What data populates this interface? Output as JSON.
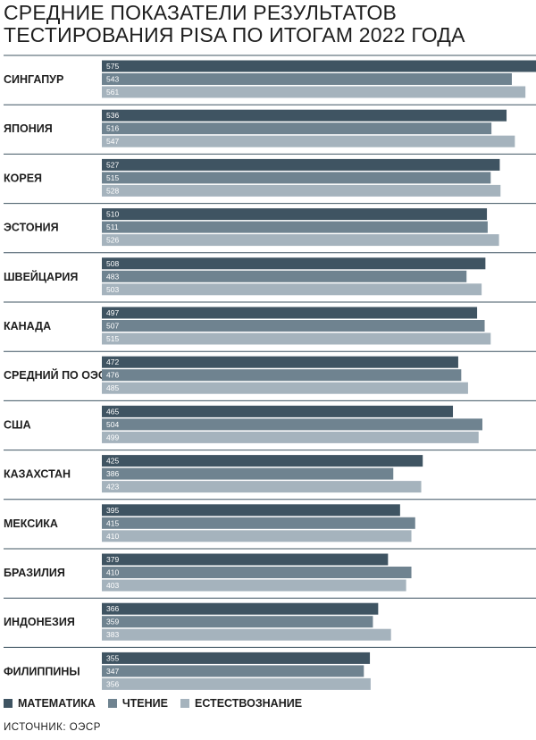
{
  "title_lines": [
    "СРЕДНИЕ ПОКАЗАТЕЛИ РЕЗУЛЬТАТОВ",
    "ТЕСТИРОВАНИЯ PISA ПО ИТОГАМ 2022 ГОДА"
  ],
  "source": "ИСТОЧНИК: ОЭСР",
  "colors": {
    "math": "#3f5462",
    "reading": "#6f8390",
    "science": "#a5b3bd",
    "divider": "#3f5462",
    "label": "#ffffff"
  },
  "chart_data": {
    "type": "bar",
    "orientation": "horizontal",
    "title": "СРЕДНИЕ ПОКАЗАТЕЛИ РЕЗУЛЬТАТОВ ТЕСТИРОВАНИЯ PISA ПО ИТОГАМ 2022 ГОДА",
    "categories": [
      "СИНГАПУР",
      "ЯПОНИЯ",
      "КОРЕЯ",
      "ЭСТОНИЯ",
      "ШВЕЙЦАРИЯ",
      "КАНАДА",
      "СРЕДНИЙ ПО ОЭСР",
      "США",
      "КАЗАХСТАН",
      "МЕКСИКА",
      "БРАЗИЛИЯ",
      "ИНДОНЕЗИЯ",
      "ФИЛИППИНЫ"
    ],
    "series": [
      {
        "name": "МАТЕМАТИКА",
        "values": [
          575,
          536,
          527,
          510,
          508,
          497,
          472,
          465,
          425,
          395,
          379,
          366,
          355
        ]
      },
      {
        "name": "ЧТЕНИЕ",
        "values": [
          543,
          516,
          515,
          511,
          483,
          507,
          476,
          504,
          386,
          415,
          410,
          359,
          347
        ]
      },
      {
        "name": "ЕСТЕСТВОЗНАНИЕ",
        "values": [
          561,
          547,
          528,
          526,
          503,
          515,
          485,
          499,
          423,
          410,
          403,
          383,
          356
        ]
      }
    ],
    "xlim": [
      0,
      575
    ],
    "grid": false,
    "legend": "bottom-left"
  }
}
